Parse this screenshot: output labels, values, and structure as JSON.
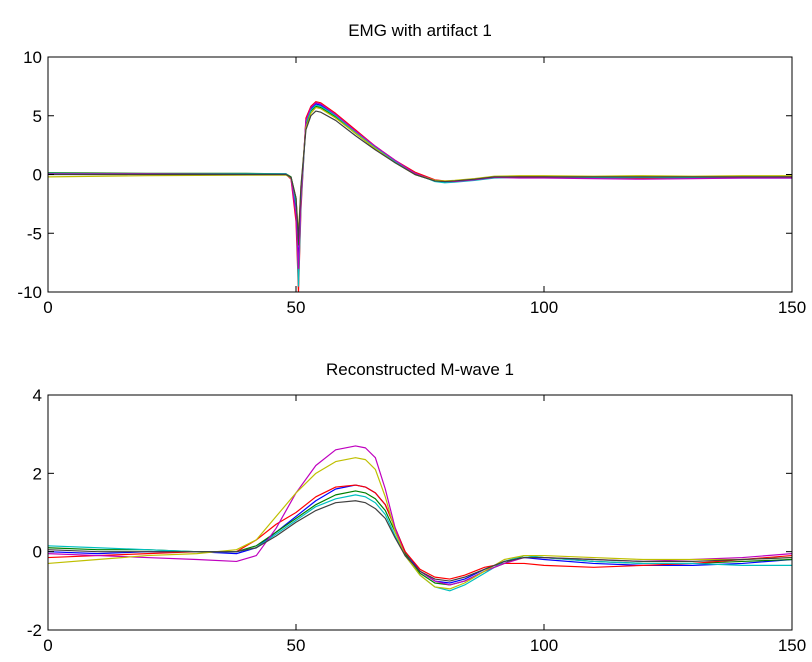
{
  "chart_data": [
    {
      "type": "line",
      "title": "EMG with artifact 1",
      "xlabel": "",
      "ylabel": "",
      "xlim": [
        0,
        150
      ],
      "ylim": [
        -10,
        10
      ],
      "xticks": [
        "0",
        "50",
        "100",
        "150"
      ],
      "yticks": [
        "10",
        "5",
        "0",
        "-5",
        "-10"
      ],
      "grid": false,
      "legend": "none",
      "series": [
        {
          "color": "#0000ff",
          "x": [
            0,
            20,
            40,
            48,
            49,
            50,
            50.5,
            51,
            52,
            53,
            54,
            55,
            58,
            62,
            66,
            70,
            74,
            78,
            80,
            82,
            86,
            90,
            95,
            100,
            110,
            120,
            130,
            140,
            150
          ],
          "y": [
            0.1,
            0.05,
            0.05,
            0.05,
            -0.3,
            -3,
            -7.5,
            -2,
            4.5,
            5.6,
            6.0,
            5.9,
            5.0,
            3.6,
            2.3,
            1.1,
            0.1,
            -0.5,
            -0.6,
            -0.6,
            -0.4,
            -0.2,
            -0.2,
            -0.2,
            -0.25,
            -0.25,
            -0.3,
            -0.3,
            -0.3
          ]
        },
        {
          "color": "#008000",
          "x": [
            0,
            20,
            40,
            48,
            49,
            50,
            50.5,
            51,
            52,
            53,
            54,
            55,
            58,
            62,
            66,
            70,
            74,
            78,
            80,
            82,
            86,
            90,
            95,
            100,
            110,
            120,
            130,
            140,
            150
          ],
          "y": [
            0.15,
            0.1,
            0.1,
            0.05,
            -0.2,
            -2,
            -6,
            -1.5,
            4.2,
            5.4,
            5.8,
            5.7,
            4.9,
            3.5,
            2.2,
            1.0,
            0.0,
            -0.55,
            -0.65,
            -0.6,
            -0.45,
            -0.25,
            -0.25,
            -0.2,
            -0.25,
            -0.2,
            -0.25,
            -0.2,
            -0.2
          ]
        },
        {
          "color": "#ff0000",
          "x": [
            0,
            20,
            40,
            48,
            49,
            50,
            50.5,
            51,
            52,
            53,
            54,
            55,
            58,
            62,
            66,
            70,
            74,
            78,
            80,
            82,
            86,
            90,
            95,
            100,
            110,
            120,
            130,
            140,
            150
          ],
          "y": [
            0.05,
            0.0,
            0.0,
            0.0,
            -0.4,
            -4,
            -10,
            -3,
            4.8,
            5.8,
            6.2,
            6.1,
            5.2,
            3.8,
            2.4,
            1.2,
            0.2,
            -0.45,
            -0.55,
            -0.55,
            -0.4,
            -0.2,
            -0.15,
            -0.2,
            -0.3,
            -0.35,
            -0.3,
            -0.25,
            -0.2
          ]
        },
        {
          "color": "#00bfbf",
          "x": [
            0,
            20,
            40,
            48,
            49,
            50,
            50.5,
            51,
            52,
            53,
            54,
            55,
            58,
            62,
            66,
            70,
            74,
            78,
            80,
            82,
            86,
            90,
            95,
            100,
            110,
            120,
            130,
            140,
            150
          ],
          "y": [
            0.1,
            0.05,
            0.05,
            0.05,
            -0.3,
            -2.5,
            -9.5,
            -2.5,
            4.4,
            5.5,
            5.9,
            5.8,
            5.0,
            3.6,
            2.3,
            1.1,
            0.1,
            -0.6,
            -0.7,
            -0.65,
            -0.5,
            -0.3,
            -0.25,
            -0.25,
            -0.3,
            -0.25,
            -0.3,
            -0.25,
            -0.25
          ]
        },
        {
          "color": "#bf00bf",
          "x": [
            0,
            20,
            40,
            48,
            49,
            50,
            50.5,
            51,
            52,
            53,
            54,
            55,
            58,
            62,
            66,
            70,
            74,
            78,
            80,
            82,
            86,
            90,
            95,
            100,
            110,
            120,
            130,
            140,
            150
          ],
          "y": [
            0.05,
            0.05,
            0.0,
            0.0,
            -0.35,
            -3.5,
            -8,
            -2,
            4.6,
            5.7,
            6.1,
            6.0,
            5.1,
            3.7,
            2.4,
            1.2,
            0.1,
            -0.5,
            -0.6,
            -0.6,
            -0.45,
            -0.25,
            -0.3,
            -0.3,
            -0.35,
            -0.4,
            -0.35,
            -0.3,
            -0.3
          ]
        },
        {
          "color": "#bfbf00",
          "x": [
            0,
            20,
            40,
            48,
            49,
            50,
            50.5,
            51,
            52,
            53,
            54,
            55,
            58,
            62,
            66,
            70,
            74,
            78,
            80,
            82,
            86,
            90,
            95,
            100,
            110,
            120,
            130,
            140,
            150
          ],
          "y": [
            -0.2,
            -0.1,
            -0.05,
            -0.05,
            -0.3,
            -2,
            -5,
            -1,
            4.0,
            5.2,
            5.7,
            5.6,
            4.8,
            3.5,
            2.2,
            1.0,
            0.0,
            -0.5,
            -0.55,
            -0.5,
            -0.35,
            -0.15,
            -0.1,
            -0.1,
            -0.15,
            -0.1,
            -0.15,
            -0.1,
            -0.1
          ]
        },
        {
          "color": "#404040",
          "x": [
            0,
            20,
            40,
            48,
            49,
            50,
            50.5,
            51,
            52,
            53,
            54,
            55,
            58,
            62,
            66,
            70,
            74,
            78,
            80,
            82,
            86,
            90,
            95,
            100,
            110,
            120,
            130,
            140,
            150
          ],
          "y": [
            0.0,
            0.0,
            0.0,
            0.0,
            -0.25,
            -2,
            -5.5,
            -1,
            3.8,
            5.0,
            5.4,
            5.3,
            4.6,
            3.3,
            2.1,
            1.0,
            0.0,
            -0.55,
            -0.6,
            -0.55,
            -0.4,
            -0.2,
            -0.2,
            -0.2,
            -0.2,
            -0.2,
            -0.2,
            -0.2,
            -0.2
          ]
        }
      ]
    },
    {
      "type": "line",
      "title": "Reconstructed M-wave 1",
      "xlabel": "",
      "ylabel": "",
      "xlim": [
        0,
        150
      ],
      "ylim": [
        -2,
        4
      ],
      "xticks": [
        "0",
        "50",
        "100",
        "150"
      ],
      "yticks": [
        "4",
        "2",
        "0",
        "-2"
      ],
      "grid": false,
      "legend": "none",
      "series": [
        {
          "color": "#0000ff",
          "x": [
            0,
            10,
            20,
            30,
            38,
            42,
            46,
            50,
            54,
            58,
            62,
            64,
            66,
            68,
            70,
            72,
            75,
            78,
            81,
            84,
            88,
            92,
            96,
            100,
            110,
            120,
            130,
            140,
            150
          ],
          "y": [
            0.0,
            -0.05,
            0.0,
            0.0,
            -0.05,
            0.1,
            0.5,
            0.9,
            1.3,
            1.6,
            1.7,
            1.65,
            1.5,
            1.2,
            0.6,
            0.0,
            -0.5,
            -0.75,
            -0.8,
            -0.7,
            -0.45,
            -0.25,
            -0.15,
            -0.2,
            -0.3,
            -0.35,
            -0.35,
            -0.3,
            -0.2
          ]
        },
        {
          "color": "#008000",
          "x": [
            0,
            10,
            20,
            30,
            38,
            42,
            46,
            50,
            54,
            58,
            62,
            64,
            66,
            68,
            70,
            72,
            75,
            78,
            81,
            84,
            88,
            92,
            96,
            100,
            110,
            120,
            130,
            140,
            150
          ],
          "y": [
            0.1,
            0.05,
            0.05,
            0.0,
            0.0,
            0.15,
            0.5,
            0.85,
            1.2,
            1.45,
            1.55,
            1.5,
            1.35,
            1.05,
            0.5,
            -0.05,
            -0.55,
            -0.8,
            -0.85,
            -0.75,
            -0.5,
            -0.3,
            -0.1,
            -0.15,
            -0.25,
            -0.3,
            -0.3,
            -0.25,
            -0.2
          ]
        },
        {
          "color": "#ff0000",
          "x": [
            0,
            10,
            20,
            30,
            38,
            42,
            46,
            50,
            54,
            58,
            62,
            64,
            66,
            68,
            70,
            72,
            75,
            78,
            81,
            84,
            88,
            92,
            96,
            100,
            110,
            120,
            130,
            140,
            150
          ],
          "y": [
            -0.15,
            -0.1,
            -0.05,
            0.0,
            0.0,
            0.3,
            0.7,
            1.0,
            1.4,
            1.65,
            1.7,
            1.65,
            1.5,
            1.2,
            0.6,
            0.0,
            -0.45,
            -0.65,
            -0.7,
            -0.6,
            -0.4,
            -0.3,
            -0.3,
            -0.35,
            -0.4,
            -0.35,
            -0.3,
            -0.2,
            -0.1
          ]
        },
        {
          "color": "#00bfbf",
          "x": [
            0,
            10,
            20,
            30,
            38,
            42,
            46,
            50,
            54,
            58,
            62,
            64,
            66,
            68,
            70,
            72,
            75,
            78,
            81,
            84,
            88,
            92,
            96,
            100,
            110,
            120,
            130,
            140,
            150
          ],
          "y": [
            0.15,
            0.1,
            0.05,
            0.0,
            0.0,
            0.1,
            0.45,
            0.8,
            1.15,
            1.35,
            1.45,
            1.4,
            1.25,
            0.95,
            0.4,
            -0.1,
            -0.6,
            -0.9,
            -1.0,
            -0.85,
            -0.55,
            -0.25,
            -0.1,
            -0.15,
            -0.25,
            -0.3,
            -0.3,
            -0.35,
            -0.35
          ]
        },
        {
          "color": "#bf00bf",
          "x": [
            0,
            10,
            20,
            30,
            38,
            42,
            46,
            50,
            54,
            58,
            62,
            64,
            66,
            68,
            70,
            72,
            75,
            78,
            81,
            84,
            88,
            92,
            96,
            100,
            110,
            120,
            130,
            140,
            150
          ],
          "y": [
            -0.05,
            -0.1,
            -0.15,
            -0.2,
            -0.25,
            -0.1,
            0.6,
            1.5,
            2.2,
            2.6,
            2.7,
            2.65,
            2.4,
            1.6,
            0.6,
            -0.1,
            -0.5,
            -0.75,
            -0.85,
            -0.75,
            -0.5,
            -0.3,
            -0.15,
            -0.15,
            -0.2,
            -0.25,
            -0.2,
            -0.15,
            -0.05
          ]
        },
        {
          "color": "#bfbf00",
          "x": [
            0,
            10,
            20,
            30,
            38,
            42,
            46,
            50,
            54,
            58,
            62,
            64,
            66,
            68,
            70,
            72,
            75,
            78,
            81,
            84,
            88,
            92,
            96,
            100,
            110,
            120,
            130,
            140,
            150
          ],
          "y": [
            -0.3,
            -0.2,
            -0.1,
            -0.05,
            0.05,
            0.3,
            0.9,
            1.5,
            2.0,
            2.3,
            2.4,
            2.35,
            2.1,
            1.4,
            0.5,
            -0.1,
            -0.6,
            -0.9,
            -0.95,
            -0.8,
            -0.5,
            -0.2,
            -0.1,
            -0.1,
            -0.15,
            -0.2,
            -0.2,
            -0.2,
            -0.15
          ]
        },
        {
          "color": "#404040",
          "x": [
            0,
            10,
            20,
            30,
            38,
            42,
            46,
            50,
            54,
            58,
            62,
            64,
            66,
            68,
            70,
            72,
            75,
            78,
            81,
            84,
            88,
            92,
            96,
            100,
            110,
            120,
            130,
            140,
            150
          ],
          "y": [
            0.05,
            0.0,
            0.0,
            0.0,
            0.0,
            0.1,
            0.4,
            0.75,
            1.05,
            1.25,
            1.3,
            1.25,
            1.1,
            0.85,
            0.35,
            -0.1,
            -0.5,
            -0.7,
            -0.75,
            -0.65,
            -0.45,
            -0.25,
            -0.15,
            -0.15,
            -0.2,
            -0.25,
            -0.25,
            -0.2,
            -0.15
          ]
        }
      ]
    }
  ]
}
